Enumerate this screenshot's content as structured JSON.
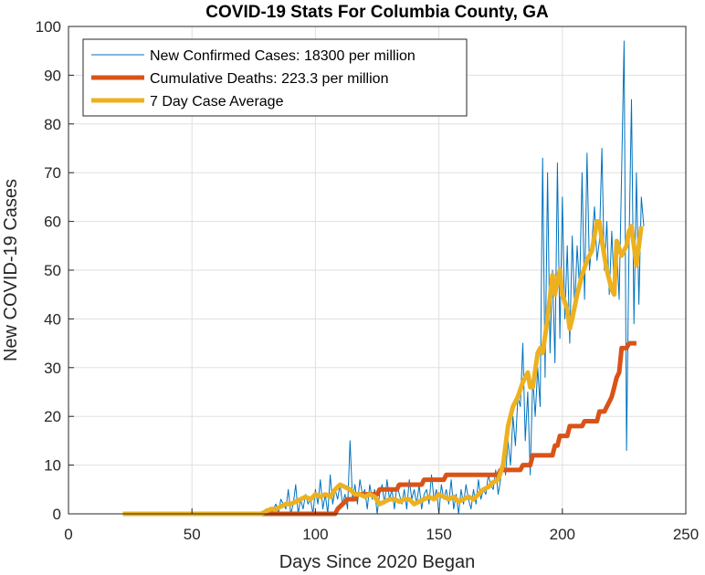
{
  "chart_data": {
    "type": "line",
    "title": "COVID-19 Stats For Columbia County, GA",
    "xlabel": "Days Since 2020 Began",
    "ylabel": "New COVID-19 Cases",
    "xlim": [
      0,
      250
    ],
    "ylim": [
      0,
      100
    ],
    "xticks": [
      0,
      50,
      100,
      150,
      200,
      250
    ],
    "yticks": [
      0,
      10,
      20,
      30,
      40,
      50,
      60,
      70,
      80,
      90,
      100
    ],
    "grid": true,
    "legend_position": "top-left",
    "series": [
      {
        "name": "New Confirmed Cases: 18300 per million",
        "color": "#0072BD",
        "line_width": "thin",
        "points": [
          [
            22,
            0
          ],
          [
            78,
            0
          ],
          [
            80,
            1
          ],
          [
            82,
            0
          ],
          [
            84,
            2
          ],
          [
            85,
            0
          ],
          [
            86,
            3
          ],
          [
            88,
            1
          ],
          [
            89,
            5
          ],
          [
            90,
            0
          ],
          [
            91,
            2
          ],
          [
            92,
            6
          ],
          [
            93,
            0
          ],
          [
            94,
            3
          ],
          [
            95,
            1
          ],
          [
            96,
            4
          ],
          [
            97,
            2
          ],
          [
            98,
            3
          ],
          [
            99,
            0
          ],
          [
            100,
            5
          ],
          [
            101,
            2
          ],
          [
            102,
            7
          ],
          [
            103,
            1
          ],
          [
            104,
            4
          ],
          [
            105,
            0
          ],
          [
            106,
            8
          ],
          [
            107,
            2
          ],
          [
            108,
            5
          ],
          [
            109,
            3
          ],
          [
            110,
            6
          ],
          [
            111,
            2
          ],
          [
            112,
            4
          ],
          [
            113,
            1
          ],
          [
            114,
            15
          ],
          [
            115,
            3
          ],
          [
            116,
            6
          ],
          [
            117,
            2
          ],
          [
            118,
            7
          ],
          [
            119,
            4
          ],
          [
            120,
            5
          ],
          [
            121,
            1
          ],
          [
            122,
            6
          ],
          [
            123,
            3
          ],
          [
            124,
            5
          ],
          [
            125,
            0
          ],
          [
            126,
            4
          ],
          [
            127,
            6
          ],
          [
            128,
            2
          ],
          [
            129,
            7
          ],
          [
            130,
            3
          ],
          [
            131,
            5
          ],
          [
            132,
            1
          ],
          [
            133,
            6
          ],
          [
            134,
            4
          ],
          [
            135,
            2
          ],
          [
            136,
            5
          ],
          [
            137,
            1
          ],
          [
            138,
            7
          ],
          [
            139,
            3
          ],
          [
            140,
            5
          ],
          [
            141,
            2
          ],
          [
            142,
            6
          ],
          [
            143,
            1
          ],
          [
            144,
            4
          ],
          [
            145,
            5
          ],
          [
            146,
            2
          ],
          [
            147,
            8
          ],
          [
            148,
            3
          ],
          [
            149,
            5
          ],
          [
            150,
            0
          ],
          [
            151,
            6
          ],
          [
            152,
            3
          ],
          [
            153,
            5
          ],
          [
            154,
            2
          ],
          [
            155,
            7
          ],
          [
            156,
            1
          ],
          [
            157,
            4
          ],
          [
            158,
            0
          ],
          [
            159,
            5
          ],
          [
            160,
            2
          ],
          [
            161,
            6
          ],
          [
            162,
            3
          ],
          [
            163,
            1
          ],
          [
            164,
            5
          ],
          [
            165,
            2
          ],
          [
            166,
            7
          ],
          [
            167,
            3
          ],
          [
            168,
            5
          ],
          [
            169,
            4
          ],
          [
            170,
            8
          ],
          [
            171,
            6
          ],
          [
            172,
            5
          ],
          [
            173,
            9
          ],
          [
            174,
            4
          ],
          [
            175,
            7
          ],
          [
            176,
            12
          ],
          [
            177,
            8
          ],
          [
            178,
            15
          ],
          [
            179,
            10
          ],
          [
            180,
            20
          ],
          [
            181,
            14
          ],
          [
            182,
            24
          ],
          [
            183,
            22
          ],
          [
            184,
            35
          ],
          [
            185,
            15
          ],
          [
            186,
            25
          ],
          [
            187,
            8
          ],
          [
            188,
            28
          ],
          [
            189,
            20
          ],
          [
            190,
            30
          ],
          [
            191,
            22
          ],
          [
            192,
            73
          ],
          [
            193,
            28
          ],
          [
            194,
            70
          ],
          [
            195,
            33
          ],
          [
            196,
            50
          ],
          [
            197,
            31
          ],
          [
            198,
            72
          ],
          [
            199,
            36
          ],
          [
            200,
            65
          ],
          [
            201,
            40
          ],
          [
            202,
            55
          ],
          [
            203,
            35
          ],
          [
            204,
            57
          ],
          [
            205,
            42
          ],
          [
            206,
            55
          ],
          [
            207,
            46
          ],
          [
            208,
            70
          ],
          [
            209,
            44
          ],
          [
            210,
            74
          ],
          [
            211,
            50
          ],
          [
            212,
            56
          ],
          [
            213,
            63
          ],
          [
            214,
            52
          ],
          [
            215,
            56
          ],
          [
            216,
            75
          ],
          [
            217,
            50
          ],
          [
            218,
            60
          ],
          [
            219,
            45
          ],
          [
            220,
            58
          ],
          [
            221,
            46
          ],
          [
            222,
            55
          ],
          [
            223,
            44
          ],
          [
            224,
            70
          ],
          [
            225,
            97
          ],
          [
            226,
            13
          ],
          [
            227,
            55
          ],
          [
            228,
            85
          ],
          [
            229,
            39
          ],
          [
            230,
            70
          ],
          [
            231,
            43
          ],
          [
            232,
            65
          ],
          [
            233,
            59
          ]
        ]
      },
      {
        "name": "Cumulative Deaths: 223.3 per million",
        "color": "#D95319",
        "line_width": "thick",
        "points": [
          [
            22,
            0
          ],
          [
            108,
            0
          ],
          [
            109,
            1
          ],
          [
            111,
            2
          ],
          [
            113,
            3
          ],
          [
            116,
            3
          ],
          [
            117,
            4
          ],
          [
            125,
            4
          ],
          [
            126,
            5
          ],
          [
            133,
            5
          ],
          [
            134,
            6
          ],
          [
            143,
            6
          ],
          [
            144,
            7
          ],
          [
            152,
            7
          ],
          [
            153,
            8
          ],
          [
            174,
            8
          ],
          [
            175,
            9
          ],
          [
            183,
            9
          ],
          [
            184,
            10
          ],
          [
            187,
            10
          ],
          [
            188,
            12
          ],
          [
            196,
            12
          ],
          [
            197,
            14
          ],
          [
            198,
            14
          ],
          [
            199,
            16
          ],
          [
            202,
            16
          ],
          [
            203,
            18
          ],
          [
            208,
            18
          ],
          [
            209,
            19
          ],
          [
            214,
            19
          ],
          [
            215,
            21
          ],
          [
            217,
            21
          ],
          [
            218,
            22
          ],
          [
            219,
            23
          ],
          [
            220,
            24
          ],
          [
            221,
            26
          ],
          [
            222,
            28
          ],
          [
            223,
            29
          ],
          [
            224,
            34
          ],
          [
            226,
            34
          ],
          [
            227,
            35
          ],
          [
            230,
            35
          ]
        ]
      },
      {
        "name": "7 Day Case Average",
        "color": "#EDB120",
        "line_width": "thick",
        "points": [
          [
            22,
            0
          ],
          [
            78,
            0
          ],
          [
            80,
            0.5
          ],
          [
            82,
            1
          ],
          [
            84,
            1
          ],
          [
            86,
            1.5
          ],
          [
            88,
            2
          ],
          [
            90,
            2
          ],
          [
            92,
            2.5
          ],
          [
            94,
            3
          ],
          [
            96,
            3.5
          ],
          [
            98,
            3
          ],
          [
            100,
            4
          ],
          [
            102,
            3.5
          ],
          [
            104,
            4
          ],
          [
            106,
            3.5
          ],
          [
            108,
            5
          ],
          [
            110,
            6
          ],
          [
            112,
            5.5
          ],
          [
            114,
            5
          ],
          [
            116,
            4
          ],
          [
            118,
            4
          ],
          [
            120,
            3.5
          ],
          [
            122,
            4
          ],
          [
            124,
            3.5
          ],
          [
            126,
            2
          ],
          [
            128,
            2.5
          ],
          [
            130,
            3
          ],
          [
            132,
            3
          ],
          [
            134,
            2.5
          ],
          [
            136,
            3
          ],
          [
            138,
            3
          ],
          [
            140,
            2
          ],
          [
            142,
            2.5
          ],
          [
            144,
            3
          ],
          [
            146,
            3.5
          ],
          [
            148,
            3
          ],
          [
            150,
            4
          ],
          [
            152,
            3.5
          ],
          [
            154,
            3
          ],
          [
            156,
            3.5
          ],
          [
            158,
            2.5
          ],
          [
            160,
            3
          ],
          [
            162,
            3.5
          ],
          [
            164,
            3
          ],
          [
            166,
            4
          ],
          [
            168,
            5
          ],
          [
            170,
            5.5
          ],
          [
            172,
            6.5
          ],
          [
            174,
            7
          ],
          [
            176,
            10
          ],
          [
            178,
            18
          ],
          [
            180,
            22
          ],
          [
            182,
            24
          ],
          [
            184,
            27
          ],
          [
            186,
            29
          ],
          [
            187,
            26
          ],
          [
            188,
            26
          ],
          [
            190,
            33
          ],
          [
            191,
            34
          ],
          [
            192,
            33
          ],
          [
            194,
            40
          ],
          [
            196,
            49
          ],
          [
            197,
            45
          ],
          [
            198,
            48
          ],
          [
            199,
            50
          ],
          [
            200,
            45
          ],
          [
            202,
            42
          ],
          [
            203,
            38
          ],
          [
            204,
            40
          ],
          [
            206,
            45
          ],
          [
            208,
            49
          ],
          [
            210,
            52
          ],
          [
            212,
            54
          ],
          [
            214,
            60
          ],
          [
            215,
            60
          ],
          [
            216,
            56
          ],
          [
            218,
            50
          ],
          [
            219,
            48
          ],
          [
            220,
            46
          ],
          [
            221,
            45
          ],
          [
            222,
            56
          ],
          [
            224,
            53
          ],
          [
            226,
            55
          ],
          [
            227,
            58
          ],
          [
            228,
            59
          ],
          [
            230,
            51
          ],
          [
            232,
            59
          ]
        ]
      }
    ]
  }
}
